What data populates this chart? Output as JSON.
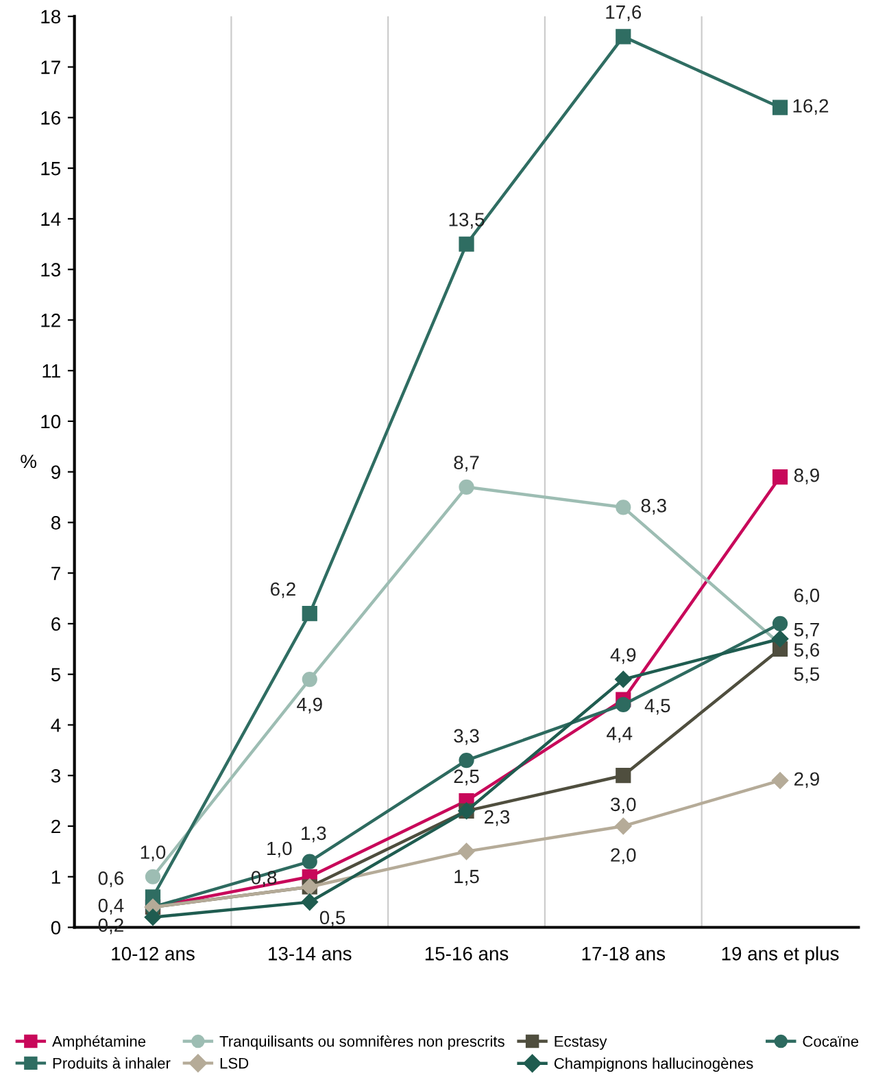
{
  "chart_data": {
    "type": "line",
    "ylabel": "%",
    "categories": [
      "10-12 ans",
      "13-14 ans",
      "15-16 ans",
      "17-18 ans",
      "19 ans et plus"
    ],
    "ylim": [
      0,
      18
    ],
    "yticks": [
      0,
      1,
      2,
      3,
      4,
      5,
      6,
      7,
      8,
      9,
      10,
      11,
      12,
      13,
      14,
      15,
      16,
      17,
      18
    ],
    "grid": false,
    "legend": "bottom",
    "series": [
      {
        "name": "Amphétamine",
        "color": "#c8085a",
        "marker": "square",
        "values": [
          0.4,
          1.0,
          2.5,
          4.5,
          8.9
        ],
        "value_labels": [
          "0,4",
          "1,0",
          "2,5",
          "4,5",
          "8,9"
        ]
      },
      {
        "name": "Tranquilisants ou somnifères non prescrits",
        "color": "#9dbdb3",
        "marker": "circle",
        "values": [
          1.0,
          4.9,
          8.7,
          8.3,
          5.6
        ],
        "value_labels": [
          "1,0",
          "4,9",
          "8,7",
          "8,3",
          "5,6"
        ]
      },
      {
        "name": "Ecstasy",
        "color": "#4f4e3e",
        "marker": "square",
        "values": [
          0.4,
          0.8,
          2.3,
          3.0,
          5.5
        ],
        "value_labels": [
          null,
          "0,8",
          "2,3",
          "3,0",
          "5,5"
        ]
      },
      {
        "name": "Cocaïne",
        "color": "#2d6a5f",
        "marker": "circle",
        "values": [
          0.4,
          1.3,
          3.3,
          4.4,
          6.0
        ],
        "value_labels": [
          null,
          "1,3",
          "3,3",
          "4,4",
          "6,0"
        ]
      },
      {
        "name": "Produits à inhaler",
        "color": "#2f6d62",
        "marker": "square",
        "values": [
          0.6,
          6.2,
          13.5,
          17.6,
          16.2
        ],
        "value_labels": [
          "0,6",
          "6,2",
          "13,5",
          "17,6",
          "16,2"
        ]
      },
      {
        "name": "LSD",
        "color": "#b5ab98",
        "marker": "diamond",
        "values": [
          0.4,
          0.8,
          1.5,
          2.0,
          2.9
        ],
        "value_labels": [
          null,
          null,
          "1,5",
          "2,0",
          "2,9"
        ]
      },
      {
        "name": "Champignons hallucinogènes",
        "color": "#1f5c50",
        "marker": "diamond",
        "values": [
          0.2,
          0.5,
          2.3,
          4.9,
          5.7
        ],
        "value_labels": [
          "0,2",
          "0,5",
          null,
          "4,9",
          "5,7"
        ]
      }
    ]
  }
}
